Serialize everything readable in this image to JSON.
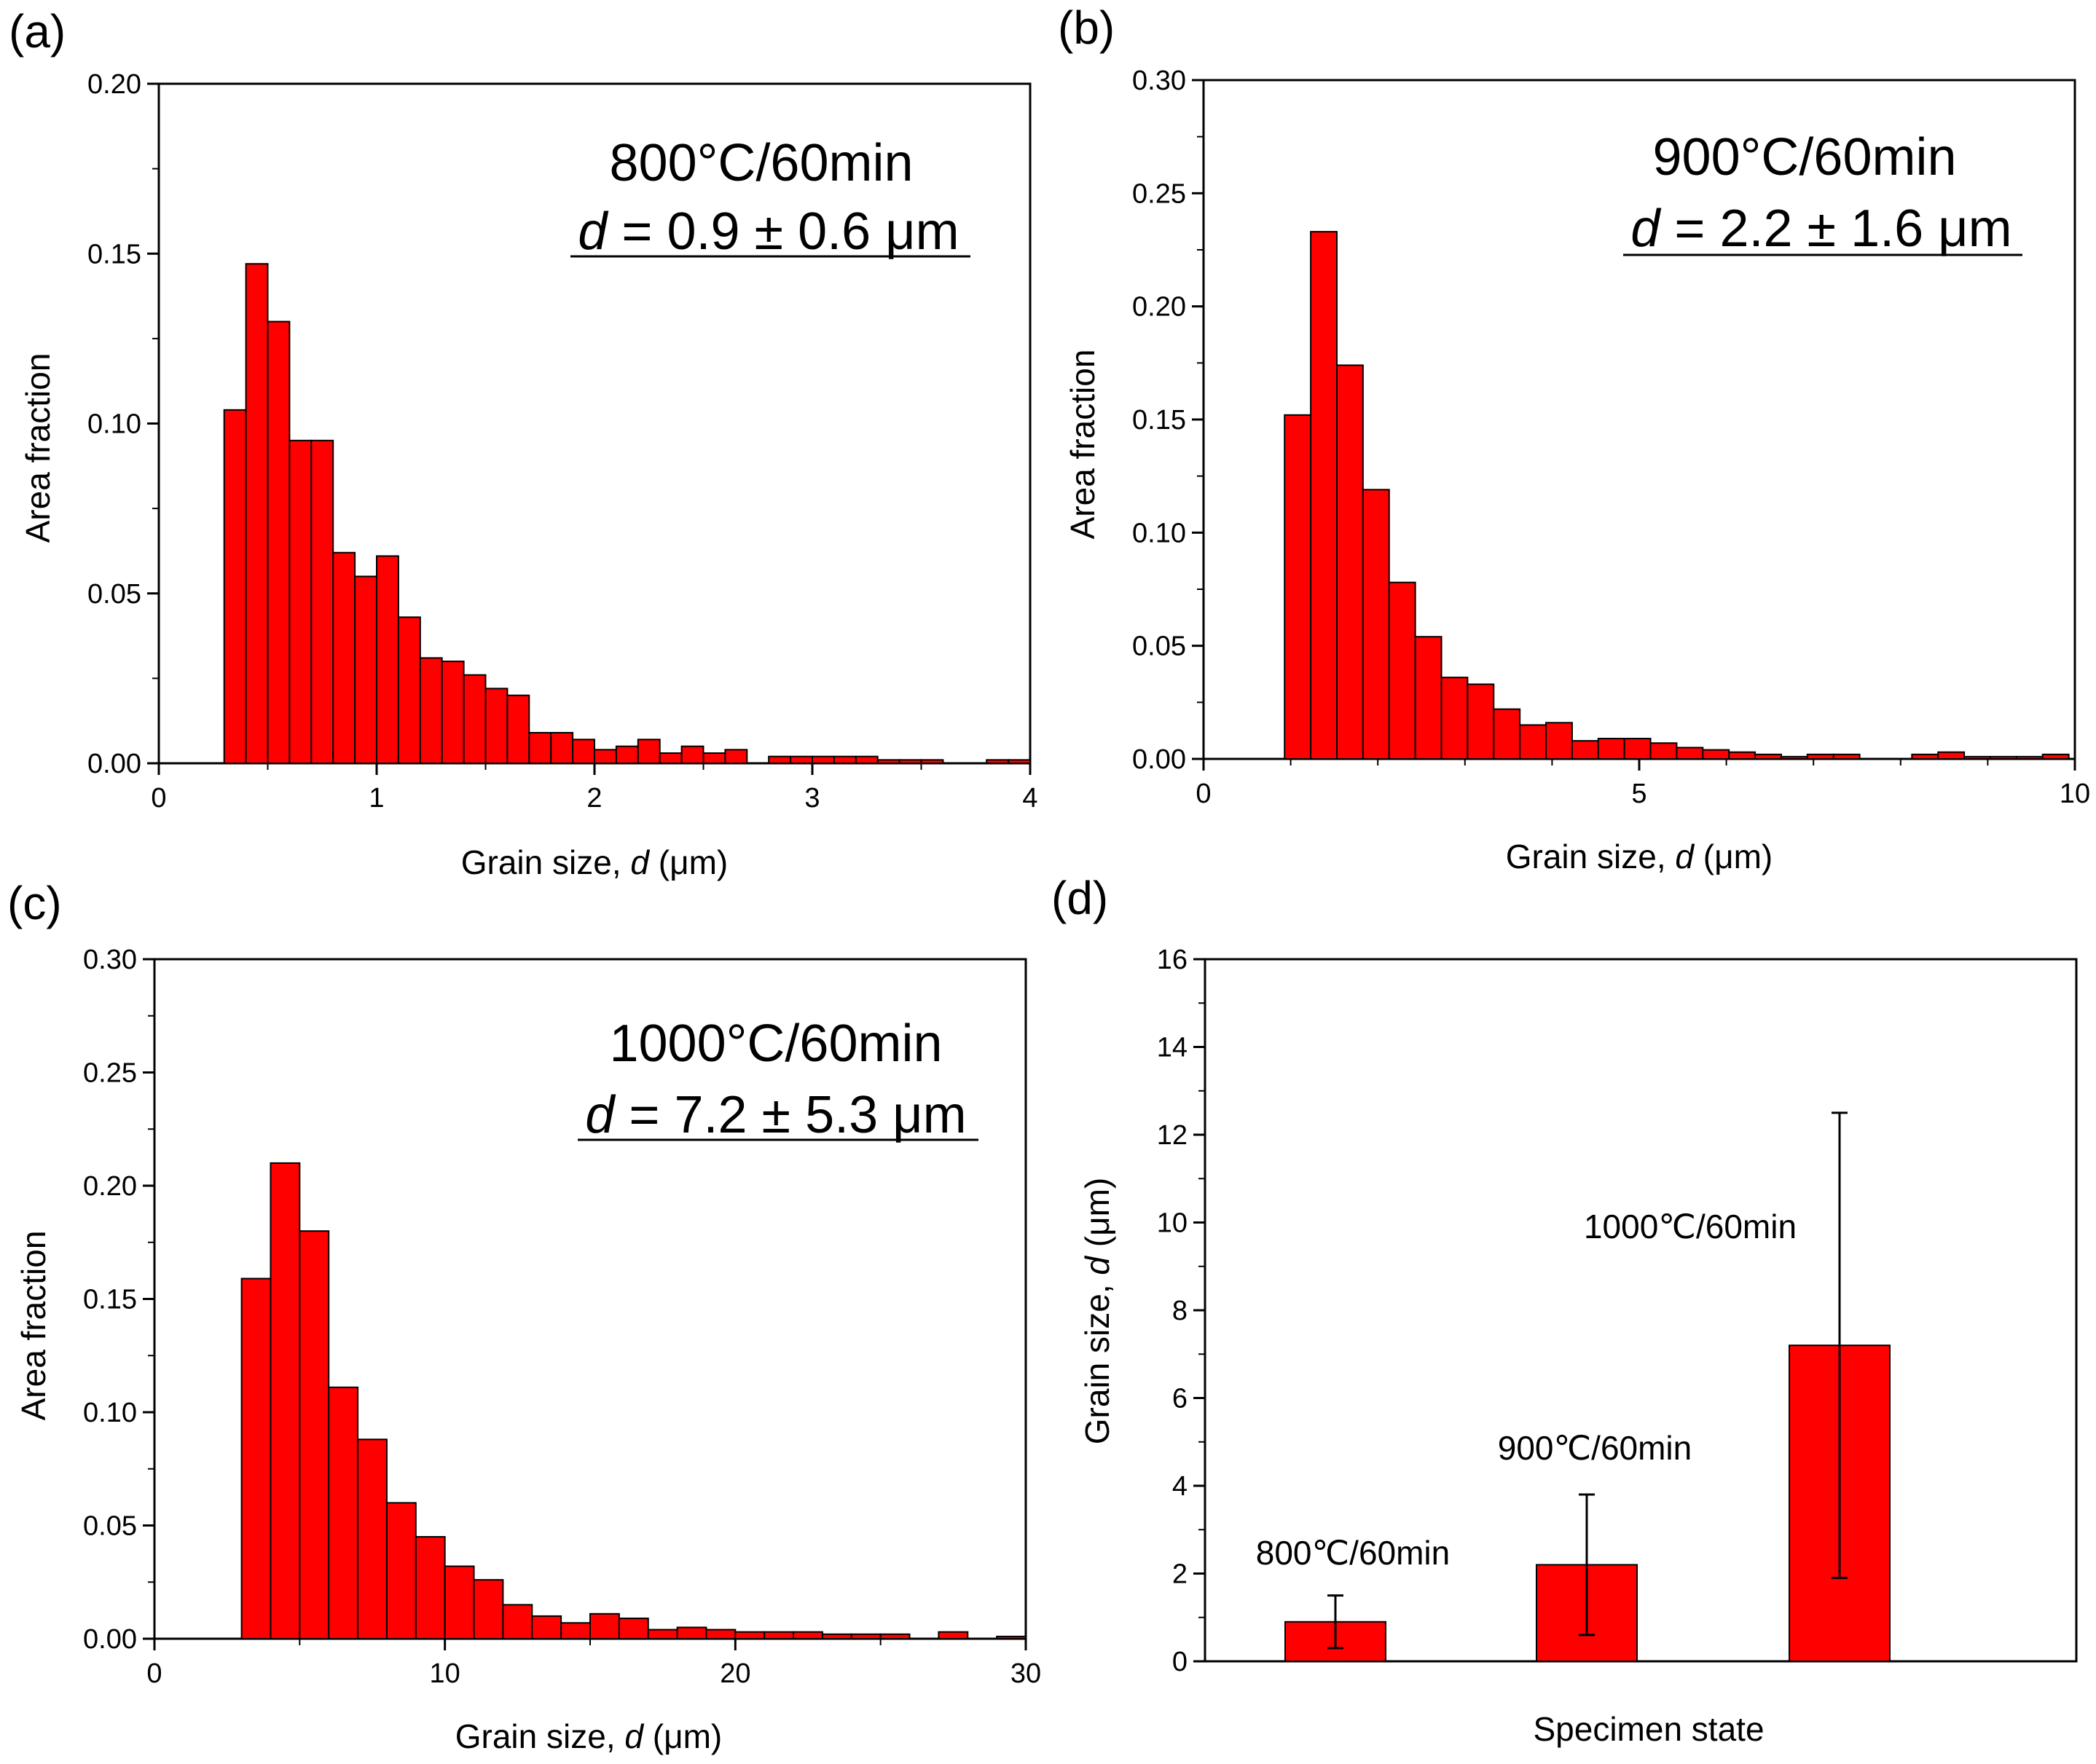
{
  "colors": {
    "bar": "#ff0000",
    "axis": "#000000"
  },
  "chart_data": [
    {
      "panel": "(a)",
      "type": "bar",
      "condition": "800°C/60min",
      "d_symbol": "d",
      "d_value": " = 0.9 ± 0.6 ",
      "d_unit": "μm",
      "xlabel": {
        "pre": "Grain size, ",
        "sym": "d",
        "post": " (μm)"
      },
      "ylabel": "Area fraction",
      "xlim": [
        0,
        4
      ],
      "ylim": [
        0,
        0.2
      ],
      "xticks": [
        0,
        1,
        2,
        3,
        4
      ],
      "xtick_labels": [
        "0",
        "1",
        "2",
        "3",
        "4"
      ],
      "yticks": [
        0,
        0.05,
        0.1,
        0.15,
        0.2
      ],
      "ytick_labels": [
        "0.00",
        "0.05",
        "0.10",
        "0.15",
        "0.20"
      ],
      "bin_start": 0.3,
      "bin_width": 0.1,
      "values": [
        0.104,
        0.147,
        0.13,
        0.095,
        0.095,
        0.062,
        0.055,
        0.061,
        0.043,
        0.031,
        0.03,
        0.026,
        0.022,
        0.02,
        0.009,
        0.009,
        0.007,
        0.004,
        0.005,
        0.007,
        0.003,
        0.005,
        0.003,
        0.004,
        0.0,
        0.002,
        0.002,
        0.002,
        0.002,
        0.002,
        0.001,
        0.001,
        0.001,
        0.0,
        0.0,
        0.001,
        0.001
      ]
    },
    {
      "panel": "(b)",
      "type": "bar",
      "condition": "900°C/60min",
      "d_symbol": "d",
      "d_value": " = 2.2 ± 1.6 ",
      "d_unit": "μm",
      "xlabel": {
        "pre": "Grain size, ",
        "sym": "d",
        "post": " (μm)"
      },
      "ylabel": "Area fraction",
      "xlim": [
        0,
        10
      ],
      "ylim": [
        0,
        0.3
      ],
      "xticks": [
        0,
        5,
        10
      ],
      "xtick_labels": [
        "0",
        "5",
        "10"
      ],
      "yticks": [
        0,
        0.05,
        0.1,
        0.15,
        0.2,
        0.25,
        0.3
      ],
      "ytick_labels": [
        "0.00",
        "0.05",
        "0.10",
        "0.15",
        "0.20",
        "0.25",
        "0.30"
      ],
      "bin_start": 0.93,
      "bin_width": 0.3,
      "values": [
        0.152,
        0.233,
        0.174,
        0.119,
        0.078,
        0.054,
        0.036,
        0.033,
        0.022,
        0.015,
        0.016,
        0.008,
        0.009,
        0.009,
        0.007,
        0.005,
        0.004,
        0.003,
        0.002,
        0.001,
        0.002,
        0.002,
        0.0,
        0.0,
        0.002,
        0.003,
        0.001,
        0.001,
        0.001,
        0.002
      ]
    },
    {
      "panel": "(c)",
      "type": "bar",
      "condition": "1000°C/60min",
      "d_symbol": "d",
      "d_value": " = 7.2 ± 5.3 ",
      "d_unit": "μm",
      "xlabel": {
        "pre": "Grain size, ",
        "sym": "d",
        "post": " (μm)"
      },
      "ylabel": "Area fraction",
      "xlim": [
        0,
        30
      ],
      "ylim": [
        0,
        0.3
      ],
      "xticks": [
        0,
        10,
        20,
        30
      ],
      "xtick_labels": [
        "0",
        "10",
        "20",
        "30"
      ],
      "yticks": [
        0,
        0.05,
        0.1,
        0.15,
        0.2,
        0.25,
        0.3
      ],
      "ytick_labels": [
        "0.00",
        "0.05",
        "0.10",
        "0.15",
        "0.20",
        "0.25",
        "0.30"
      ],
      "bin_start": 3.0,
      "bin_width": 1.0,
      "values": [
        0.159,
        0.21,
        0.18,
        0.111,
        0.088,
        0.06,
        0.045,
        0.032,
        0.026,
        0.015,
        0.01,
        0.007,
        0.011,
        0.009,
        0.004,
        0.005,
        0.004,
        0.003,
        0.003,
        0.003,
        0.002,
        0.002,
        0.002,
        0.0,
        0.003,
        0.0,
        0.001
      ]
    },
    {
      "panel": "(d)",
      "type": "bar",
      "xlabel": "Specimen state",
      "ylabel": {
        "pre": "Grain size, ",
        "sym": "d",
        "post": " (μm)"
      },
      "ylim": [
        0,
        16
      ],
      "yticks": [
        0,
        2,
        4,
        6,
        8,
        10,
        12,
        14,
        16
      ],
      "ytick_labels": [
        "0",
        "2",
        "4",
        "6",
        "8",
        "10",
        "12",
        "14",
        "16"
      ],
      "categories": [
        "800℃/60min",
        "900℃/60min",
        "1000℃/60min"
      ],
      "values": [
        0.9,
        2.2,
        7.2
      ],
      "errors": [
        0.6,
        1.6,
        5.3
      ]
    }
  ]
}
